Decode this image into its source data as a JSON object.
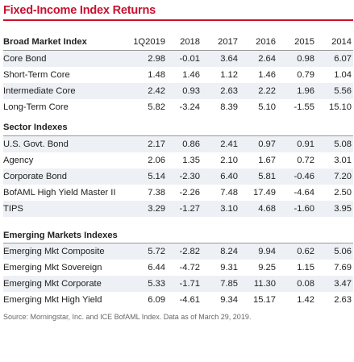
{
  "title": "Fixed-Income Index Returns",
  "columns": [
    "1Q2019",
    "2018",
    "2017",
    "2016",
    "2015",
    "2014"
  ],
  "sections": [
    {
      "name": "Broad Market Index",
      "rows": [
        {
          "label": "Core Bond",
          "values": [
            "2.98",
            "-0.01",
            "3.64",
            "2.64",
            "0.98",
            "6.07"
          ]
        },
        {
          "label": "Short-Term Core",
          "values": [
            "1.48",
            "1.46",
            "1.12",
            "1.46",
            "0.79",
            "1.04"
          ]
        },
        {
          "label": "Intermediate Core",
          "values": [
            "2.42",
            "0.93",
            "2.63",
            "2.22",
            "1.96",
            "5.56"
          ]
        },
        {
          "label": "Long-Term Core",
          "values": [
            "5.82",
            "-3.24",
            "8.39",
            "5.10",
            "-1.55",
            "15.10"
          ]
        }
      ]
    },
    {
      "name": "Sector Indexes",
      "rows": [
        {
          "label": "U.S. Govt. Bond",
          "values": [
            "2.17",
            "0.86",
            "2.41",
            "0.97",
            "0.91",
            "5.08"
          ]
        },
        {
          "label": "Agency",
          "values": [
            "2.06",
            "1.35",
            "2.10",
            "1.67",
            "0.72",
            "3.01"
          ]
        },
        {
          "label": "Corporate Bond",
          "values": [
            "5.14",
            "-2.30",
            "6.40",
            "5.81",
            "-0.46",
            "7.20"
          ]
        },
        {
          "label": "BofAML High Yield Master II",
          "values": [
            "7.38",
            "-2.26",
            "7.48",
            "17.49",
            "-4.64",
            "2.50"
          ]
        },
        {
          "label": "TIPS",
          "values": [
            "3.29",
            "-1.27",
            "3.10",
            "4.68",
            "-1.60",
            "3.95"
          ]
        }
      ]
    },
    {
      "name": "Emerging Markets Indexes",
      "rows": [
        {
          "label": "Emerging Mkt Composite",
          "values": [
            "5.72",
            "-2.82",
            "8.24",
            "9.94",
            "0.62",
            "5.06"
          ]
        },
        {
          "label": "Emerging Mkt Sovereign",
          "values": [
            "6.44",
            "-4.72",
            "9.31",
            "9.25",
            "1.15",
            "7.69"
          ]
        },
        {
          "label": "Emerging Mkt Corporate",
          "values": [
            "5.33",
            "-1.71",
            "7.85",
            "11.30",
            "0.08",
            "3.47"
          ]
        },
        {
          "label": "Emerging Mkt High Yield",
          "values": [
            "6.09",
            "-4.61",
            "9.34",
            "15.17",
            "1.42",
            "2.63"
          ]
        }
      ]
    }
  ],
  "source": "Source: Morningstar, Inc. and ICE BofAML Index. Data as of March 29, 2019.",
  "colors": {
    "accent": "#c8102e",
    "row_shade": "#edf0f4"
  }
}
